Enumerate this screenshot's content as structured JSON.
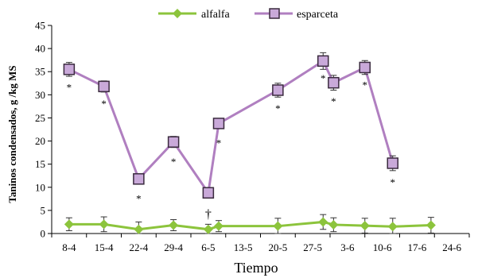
{
  "chart_data": {
    "type": "line",
    "xlabel": "Tiempo",
    "ylabel": "Taninos condensados, g /kg MS",
    "ylim": [
      0,
      45
    ],
    "yticks": [
      "0",
      "5",
      "10",
      "15",
      "20",
      "25",
      "30",
      "35",
      "40",
      "45"
    ],
    "xticks": [
      "8-4",
      "15-4",
      "22-4",
      "29-4",
      "6-5",
      "13-5",
      "20-5",
      "27-5",
      "3-6",
      "10-6",
      "17-6",
      "24-6"
    ],
    "grid": false,
    "legend_position": "top-center",
    "series": [
      {
        "name": "alfalfa",
        "color": "#8cc43c",
        "marker": "diamond",
        "x": [
          0,
          1,
          2,
          3,
          4,
          4.3,
          6,
          7.3,
          7.6,
          8.5,
          9.3,
          10.4
        ],
        "values": [
          2.0,
          2.0,
          0.9,
          1.8,
          0.9,
          1.6,
          1.6,
          2.5,
          1.9,
          1.7,
          1.5,
          1.8
        ],
        "errors": [
          1.4,
          1.6,
          1.6,
          1.2,
          1.1,
          1.2,
          1.7,
          1.6,
          1.5,
          1.6,
          1.8,
          1.7
        ]
      },
      {
        "name": "esparceta",
        "color": "#b07fc0",
        "marker": "square",
        "x": [
          0,
          1,
          2,
          3,
          4,
          4.3,
          6,
          7.3,
          7.6,
          8.5,
          9.3
        ],
        "values": [
          35.5,
          31.8,
          11.8,
          19.8,
          8.8,
          23.8,
          31.0,
          37.3,
          32.6,
          35.9,
          15.2
        ],
        "errors": [
          1.5,
          1.2,
          0.8,
          1.2,
          0.9,
          1.0,
          1.5,
          1.8,
          1.6,
          1.5,
          1.6
        ]
      }
    ],
    "annotations": [
      {
        "text": "*",
        "x": 0,
        "y": 31.5
      },
      {
        "text": "*",
        "x": 1,
        "y": 28.0
      },
      {
        "text": "*",
        "x": 2,
        "y": 7.5
      },
      {
        "text": "*",
        "x": 3,
        "y": 15.5
      },
      {
        "text": "†",
        "x": 4,
        "y": 4.0
      },
      {
        "text": "*",
        "x": 4.3,
        "y": 19.5
      },
      {
        "text": "*",
        "x": 6,
        "y": 27.0
      },
      {
        "text": "*",
        "x": 7.3,
        "y": 33.5
      },
      {
        "text": "*",
        "x": 7.6,
        "y": 28.5
      },
      {
        "text": "*",
        "x": 8.5,
        "y": 32.0
      },
      {
        "text": "*",
        "x": 9.3,
        "y": 11.0
      }
    ]
  }
}
